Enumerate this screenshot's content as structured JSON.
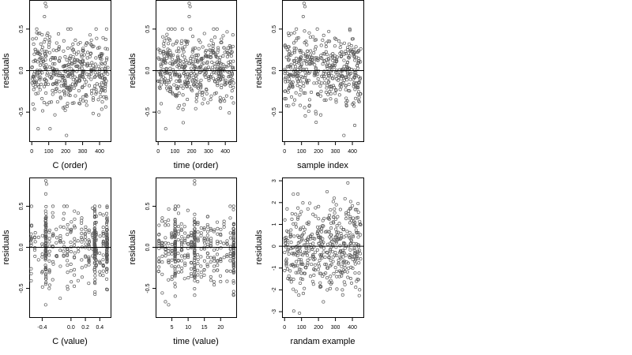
{
  "chart_data": [
    {
      "type": "scatter",
      "panel": "C (order)",
      "xlabel": "C (order)",
      "ylabel": "residuals",
      "xlim": [
        -15,
        465
      ],
      "ylim": [
        -0.85,
        0.85
      ],
      "xticks": [
        0,
        100,
        200,
        300,
        400
      ],
      "xtick_labels": [
        "0",
        "100",
        "200",
        "300",
        "400"
      ],
      "yticks": [
        -0.5,
        0.0,
        0.5
      ],
      "ytick_labels": [
        "-0.5",
        "0.0",
        "0.5"
      ],
      "hline": 0,
      "n_points": 450,
      "x_range": [
        0,
        450
      ],
      "y_summary": {
        "min": -0.73,
        "max": 0.81,
        "center": 0.0
      },
      "outliers": [
        [
          80,
          0.81
        ],
        [
          85,
          0.77
        ],
        [
          75,
          0.65
        ],
        [
          205,
          -0.78
        ]
      ]
    },
    {
      "type": "scatter",
      "panel": "time (order)",
      "xlabel": "time (order)",
      "ylabel": "residuals",
      "xlim": [
        -15,
        465
      ],
      "ylim": [
        -0.85,
        0.85
      ],
      "xticks": [
        0,
        100,
        200,
        300,
        400
      ],
      "xtick_labels": [
        "0",
        "100",
        "200",
        "300",
        "400"
      ],
      "yticks": [
        -0.5,
        0.0,
        0.5
      ],
      "ytick_labels": [
        "-0.5",
        "0.0",
        "0.5"
      ],
      "hline": 0,
      "n_points": 450,
      "x_range": [
        0,
        450
      ],
      "y_summary": {
        "min": -0.78,
        "max": 0.81,
        "center": 0.0
      },
      "outliers": [
        [
          185,
          0.81
        ],
        [
          190,
          0.77
        ],
        [
          185,
          0.65
        ],
        [
          45,
          -0.7
        ]
      ]
    },
    {
      "type": "scatter",
      "panel": "sample index",
      "xlabel": "sample index",
      "ylabel": "residuals",
      "xlim": [
        -15,
        465
      ],
      "ylim": [
        -0.85,
        0.85
      ],
      "xticks": [
        0,
        100,
        200,
        300,
        400
      ],
      "xtick_labels": [
        "0",
        "100",
        "200",
        "300",
        "400"
      ],
      "yticks": [
        -0.5,
        0.0,
        0.5
      ],
      "ytick_labels": [
        "-0.5",
        "0.0",
        "0.5"
      ],
      "hline": 0,
      "n_points": 450,
      "x_range": [
        0,
        450
      ],
      "y_summary": {
        "min": -0.8,
        "max": 0.81,
        "center": 0.0
      },
      "outliers": [
        [
          115,
          0.81
        ],
        [
          120,
          0.77
        ],
        [
          110,
          0.65
        ],
        [
          350,
          -0.78
        ]
      ]
    },
    {
      "type": "scatter",
      "panel": "C (value)",
      "xlabel": "C (value)",
      "ylabel": "residuals",
      "xlim": [
        -0.58,
        0.55
      ],
      "ylim": [
        -0.85,
        0.85
      ],
      "xticks": [
        -0.4,
        0.0,
        0.2,
        0.4
      ],
      "xtick_labels": [
        "-0.4",
        "0.0",
        "0.2",
        "0.4"
      ],
      "yticks": [
        -0.5,
        0.0,
        0.5
      ],
      "ytick_labels": [
        "-0.5",
        "0.0",
        "0.5"
      ],
      "hline": 0,
      "n_points": 450,
      "x_range": [
        -0.55,
        0.52
      ],
      "y_summary": {
        "min": -0.73,
        "max": 0.81,
        "center": 0.0
      },
      "dense_columns": [
        -0.35,
        0.33,
        0.5
      ],
      "outliers": [
        [
          -0.35,
          0.81
        ],
        [
          -0.34,
          0.77
        ],
        [
          -0.35,
          0.65
        ]
      ]
    },
    {
      "type": "scatter",
      "panel": "time (value)",
      "xlabel": "time (value)",
      "ylabel": "residuals",
      "xlim": [
        0,
        24.8
      ],
      "ylim": [
        -0.85,
        0.85
      ],
      "xticks": [
        5,
        10,
        15,
        20
      ],
      "xtick_labels": [
        "5",
        "10",
        "15",
        "20"
      ],
      "yticks": [
        -0.5,
        0.0,
        0.5
      ],
      "ytick_labels": [
        "-0.5",
        "0.0",
        "0.5"
      ],
      "hline": 0,
      "n_points": 450,
      "x_range": [
        1,
        24
      ],
      "y_summary": {
        "min": -0.78,
        "max": 0.81,
        "center": 0.0
      },
      "dense_columns": [
        6,
        12,
        24
      ],
      "outliers": [
        [
          12,
          0.81
        ],
        [
          12,
          0.77
        ],
        [
          4,
          -0.7
        ]
      ]
    },
    {
      "type": "scatter",
      "panel": "randam example",
      "xlabel": "randam example",
      "ylabel": "residuals",
      "xlim": [
        -15,
        465
      ],
      "ylim": [
        -3.25,
        3.15
      ],
      "xticks": [
        0,
        100,
        200,
        300,
        400
      ],
      "xtick_labels": [
        "0",
        "100",
        "200",
        "300",
        "400"
      ],
      "yticks": [
        -3,
        -2,
        -1,
        0,
        1,
        2,
        3
      ],
      "ytick_labels": [
        "-3",
        "-2",
        "-1",
        "0",
        "1",
        "2",
        "3"
      ],
      "hline": 0,
      "n_points": 450,
      "x_range": [
        0,
        450
      ],
      "y_summary": {
        "min": -3.1,
        "max": 2.9,
        "center": 0.0
      }
    }
  ]
}
